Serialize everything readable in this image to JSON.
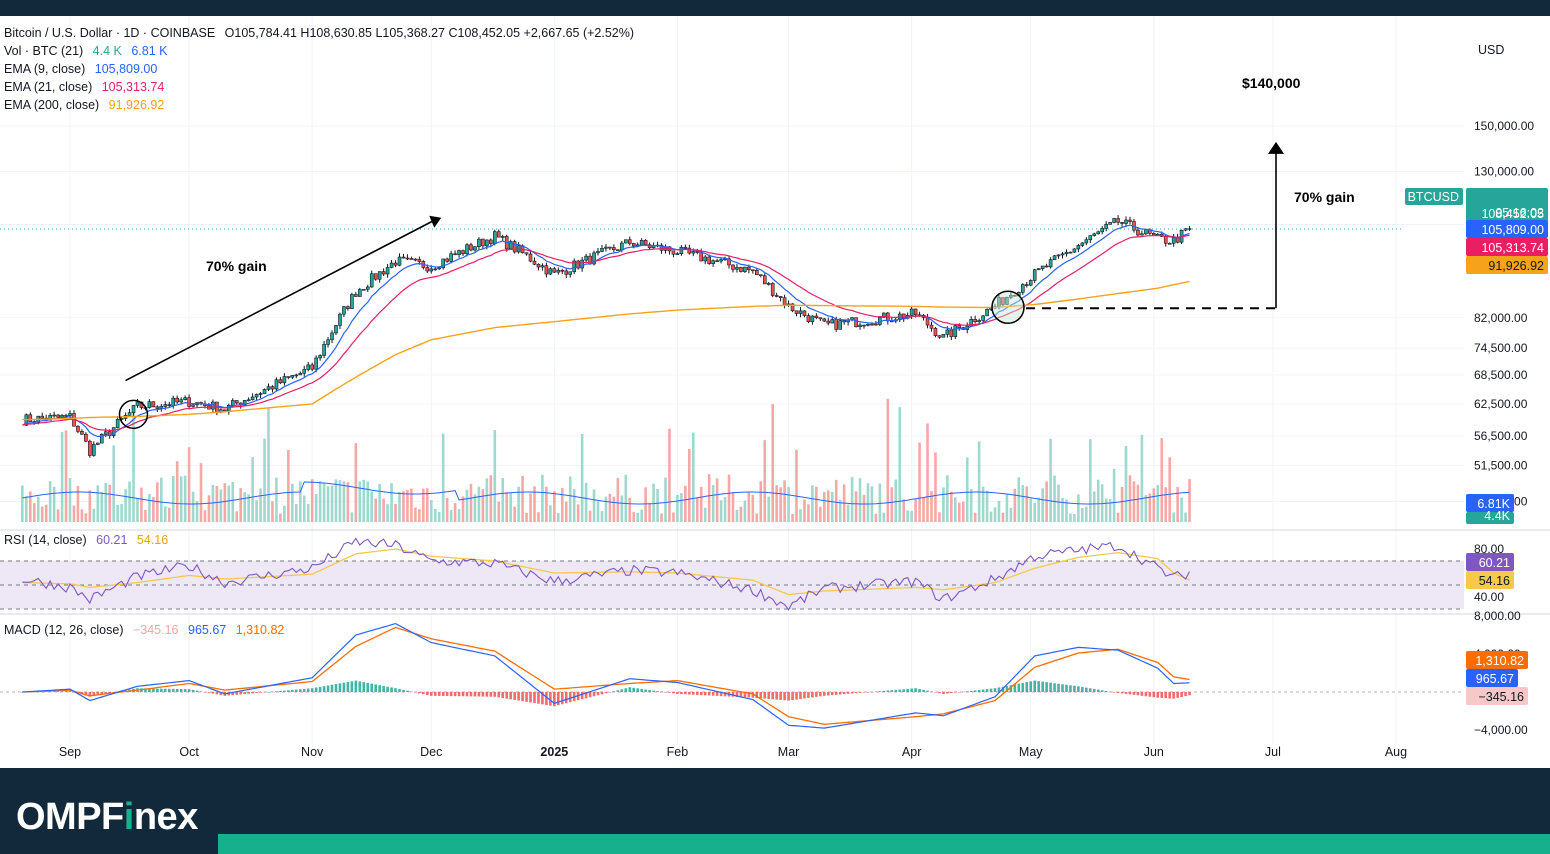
{
  "header": {
    "symbol_line": "Bitcoin / U.S. Dollar · 1D · COINBASE",
    "ohlc": "O105,784.41 H108,630.85 L105,368.27 C108,452.05 +2,667.65 (+2.52%)",
    "vol_label": "Vol · BTC (21)",
    "vol_value_1": "4.4 K",
    "vol_value_2": "6.81 K",
    "ema9_label": "EMA (9, close)",
    "ema9_value": "105,809.00",
    "ema21_label": "EMA (21, close)",
    "ema21_value": "105,313.74",
    "ema200_label": "EMA (200, close)",
    "ema200_value": "91,926.92",
    "currency_button": "USD"
  },
  "rsi_legend": {
    "label": "RSI (14, close)",
    "v1": "60.21",
    "v2": "54.16"
  },
  "macd_legend": {
    "label": "MACD (12, 26, close)",
    "v1": "−345.16",
    "v2": "965.67",
    "v3": "1,310.82"
  },
  "annotations": {
    "left_gain": "70% gain",
    "right_gain": "70% gain",
    "target": "$140,000"
  },
  "price_badges": {
    "symbol": "BTCUSD",
    "price": "108,452.05",
    "countdown": "05:16:02",
    "ema9": "105,809.00",
    "ema21": "105,313.74",
    "ema200": "91,926.92",
    "vol": "6.81K",
    "vol2": "4.4K"
  },
  "rsi_badges": {
    "rsi": "60.21",
    "ma": "54.16"
  },
  "macd_badges": {
    "signal": "1,310.82",
    "macd": "965.67",
    "hist": "−345.16"
  },
  "colors": {
    "up": "#26a69a",
    "down": "#ef5350",
    "ema9": "#2962ff",
    "ema21": "#e91e63",
    "ema200": "#f7a21b",
    "rsi": "#7e57c2",
    "rsi_ma": "#f7c948",
    "macd": "#2962ff",
    "signal": "#ff6d00",
    "footer_bg": "#12293b",
    "footer_accent": "#17b08c"
  },
  "footer": {
    "logo_a": "OMPF",
    "logo_b": "i",
    "logo_c": "nex"
  },
  "chart_data": [
    {
      "type": "candlestick",
      "title": "Bitcoin / U.S. Dollar · 1D · COINBASE",
      "y_ticks": [
        "150,000.00",
        "130,000.00",
        "110,000.00",
        "82,000.00",
        "74,500.00",
        "68,500.00",
        "62,500.00",
        "56,500.00",
        "51,500.00",
        "46,000.00"
      ],
      "x_ticks": [
        "Sep",
        "Oct",
        "Nov",
        "Dec",
        "2025",
        "Feb",
        "Mar",
        "Apr",
        "May",
        "Jun",
        "Jul",
        "Aug"
      ],
      "x": [
        "Aug 20",
        "Sep 1",
        "Sep 6",
        "Sep 18",
        "Oct 1",
        "Oct 10",
        "Nov 1",
        "Nov 12",
        "Nov 22",
        "Dec 1",
        "Dec 17",
        "Jan 1",
        "Jan 20",
        "Feb 1",
        "Feb 20",
        "Mar 1",
        "Mar 10",
        "Apr 1",
        "Apr 8",
        "Apr 21",
        "May 1",
        "May 12",
        "May 22",
        "Jun 1",
        "Jun 5",
        "Jun 9"
      ],
      "series": [
        {
          "name": "BTCUSD",
          "values": [
            59500,
            60000,
            54000,
            62000,
            63000,
            61500,
            70000,
            89000,
            98000,
            96500,
            106000,
            94000,
            104000,
            101000,
            95000,
            85000,
            80000,
            83000,
            77000,
            85000,
            94000,
            103000,
            111000,
            105000,
            104500,
            108452
          ]
        },
        {
          "name": "EMA (200, close)",
          "values": [
            59500,
            59700,
            59900,
            60100,
            60500,
            61000,
            62500,
            68000,
            73000,
            76500,
            79500,
            81000,
            83000,
            84000,
            85000,
            85300,
            85200,
            85000,
            84800,
            84700,
            85500,
            87000,
            88500,
            90000,
            91000,
            91927
          ]
        }
      ],
      "target_price": 140000,
      "breakout_level": 84500
    },
    {
      "type": "bar",
      "title": "Vol · BTC (21)",
      "y_ticks": [],
      "values_k": [
        6.81,
        4.4
      ]
    },
    {
      "type": "line",
      "title": "RSI (14, close)",
      "y_ticks": [
        "80.00",
        "40.00"
      ],
      "ylim": [
        20,
        90
      ],
      "bands": [
        70,
        50,
        30
      ],
      "series": [
        {
          "name": "RSI",
          "values": [
            55,
            48,
            38,
            57,
            66,
            52,
            64,
            86,
            83,
            70,
            68,
            53,
            62,
            60,
            46,
            32,
            47,
            53,
            38,
            55,
            74,
            79,
            83,
            64,
            56,
            60.21
          ]
        },
        {
          "name": "MA",
          "values": [
            52,
            51,
            48,
            52,
            58,
            55,
            59,
            76,
            80,
            74,
            70,
            60,
            61,
            60,
            54,
            42,
            45,
            48,
            46,
            52,
            64,
            73,
            77,
            72,
            60,
            54.16
          ]
        }
      ]
    },
    {
      "type": "line",
      "title": "MACD (12, 26, close)",
      "y_ticks": [
        "8,000.00",
        "4,000.00",
        "−4,000.00"
      ],
      "ylim": [
        -4500,
        8500
      ],
      "series": [
        {
          "name": "MACD",
          "values": [
            0,
            300,
            -900,
            600,
            1200,
            -200,
            1500,
            6000,
            7200,
            5200,
            3800,
            -1200,
            1400,
            1000,
            -800,
            -3500,
            -3800,
            -2200,
            -2500,
            -500,
            3800,
            4700,
            4400,
            2500,
            900,
            965.67
          ]
        },
        {
          "name": "Signal",
          "values": [
            0,
            200,
            -400,
            200,
            900,
            200,
            1100,
            4800,
            6800,
            5600,
            4300,
            300,
            900,
            1200,
            -200,
            -2600,
            -3400,
            -2600,
            -2300,
            -900,
            2600,
            4100,
            4500,
            3100,
            1600,
            1310.82
          ]
        },
        {
          "name": "Histogram",
          "values": [
            0,
            100,
            -500,
            400,
            300,
            -400,
            400,
            1200,
            400,
            -400,
            -500,
            -1500,
            500,
            -200,
            -600,
            -900,
            -400,
            400,
            -200,
            400,
            1200,
            600,
            -100,
            -600,
            -700,
            -345.16
          ]
        }
      ]
    }
  ]
}
